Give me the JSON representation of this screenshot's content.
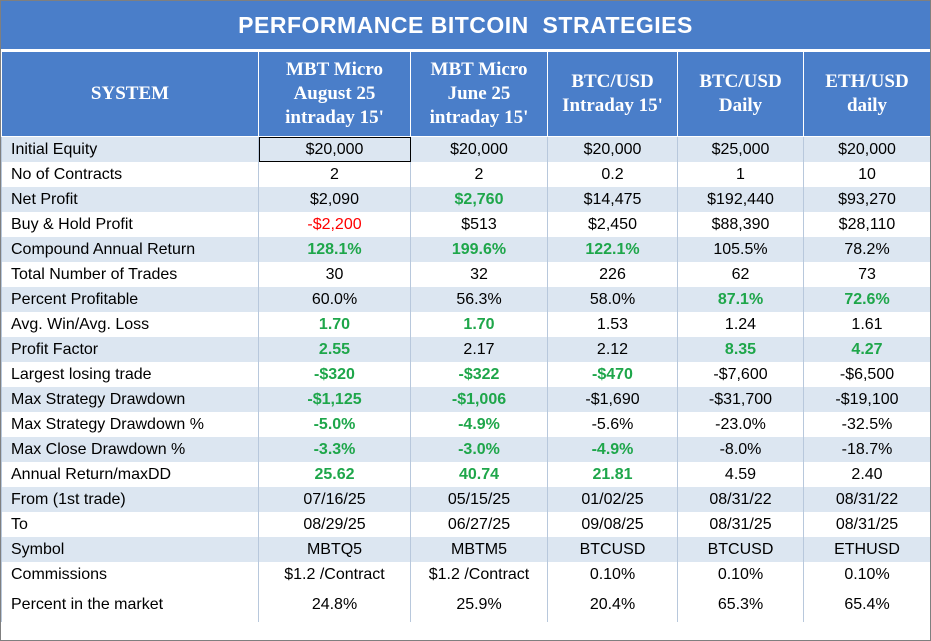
{
  "header": {
    "title": "PERFORMANCE BITCOIN  STRATEGIES",
    "columns": [
      [
        "SYSTEM"
      ],
      [
        "MBT Micro",
        "August 25",
        "intraday 15'"
      ],
      [
        "MBT Micro",
        "June 25",
        "intraday 15'"
      ],
      [
        "BTC/USD",
        "Intraday 15'"
      ],
      [
        "BTC/USD",
        "Daily"
      ],
      [
        "ETH/USD",
        "daily"
      ]
    ]
  },
  "table": {
    "rows": [
      {
        "label": "Initial Equity",
        "values": [
          "$20,000",
          "$20,000",
          "$20,000",
          "$25,000",
          "$20,000"
        ],
        "colors": [
          "#000000",
          "#000000",
          "#000000",
          "#000000",
          "#000000"
        ]
      },
      {
        "label": "No of Contracts",
        "values": [
          "2",
          "2",
          "0.2",
          "1",
          "10"
        ],
        "colors": [
          "#000000",
          "#000000",
          "#000000",
          "#000000",
          "#000000"
        ]
      },
      {
        "label": "Net Profit",
        "values": [
          "$2,090",
          "$2,760",
          "$14,475",
          "$192,440",
          "$93,270"
        ],
        "colors": [
          "#000000",
          "#1ea64a",
          "#000000",
          "#000000",
          "#000000"
        ]
      },
      {
        "label": "Buy & Hold Profit",
        "values": [
          "-$2,200",
          "$513",
          "$2,450",
          "$88,390",
          "$28,110"
        ],
        "colors": [
          "#ff0000",
          "#000000",
          "#000000",
          "#000000",
          "#000000"
        ]
      },
      {
        "label": "Compound Annual Return",
        "values": [
          "128.1%",
          "199.6%",
          "122.1%",
          "105.5%",
          "78.2%"
        ],
        "colors": [
          "#1ea64a",
          "#1ea64a",
          "#1ea64a",
          "#000000",
          "#000000"
        ]
      },
      {
        "label": "Total Number of Trades",
        "values": [
          "30",
          "32",
          "226",
          "62",
          "73"
        ],
        "colors": [
          "#000000",
          "#000000",
          "#000000",
          "#000000",
          "#000000"
        ]
      },
      {
        "label": "Percent Profitable",
        "values": [
          "60.0%",
          "56.3%",
          "58.0%",
          "87.1%",
          "72.6%"
        ],
        "colors": [
          "#000000",
          "#000000",
          "#000000",
          "#1ea64a",
          "#1ea64a"
        ]
      },
      {
        "label": "Avg. Win/Avg. Loss",
        "values": [
          "1.70",
          "1.70",
          "1.53",
          "1.24",
          "1.61"
        ],
        "colors": [
          "#1ea64a",
          "#1ea64a",
          "#000000",
          "#000000",
          "#000000"
        ]
      },
      {
        "label": "Profit Factor",
        "values": [
          "2.55",
          "2.17",
          "2.12",
          "8.35",
          "4.27"
        ],
        "colors": [
          "#1ea64a",
          "#000000",
          "#000000",
          "#1ea64a",
          "#1ea64a"
        ]
      },
      {
        "label": "Largest losing trade",
        "values": [
          "-$320",
          "-$322",
          "-$470",
          "-$7,600",
          "-$6,500"
        ],
        "colors": [
          "#1ea64a",
          "#1ea64a",
          "#1ea64a",
          "#000000",
          "#000000"
        ]
      },
      {
        "label": "Max Strategy Drawdown",
        "values": [
          "-$1,125",
          "-$1,006",
          "-$1,690",
          "-$31,700",
          "-$19,100"
        ],
        "colors": [
          "#1ea64a",
          "#1ea64a",
          "#000000",
          "#000000",
          "#000000"
        ]
      },
      {
        "label": "Max Strategy Drawdown %",
        "values": [
          "-5.0%",
          "-4.9%",
          "-5.6%",
          "-23.0%",
          "-32.5%"
        ],
        "colors": [
          "#1ea64a",
          "#1ea64a",
          "#000000",
          "#000000",
          "#000000"
        ]
      },
      {
        "label": "Max Close Drawdown %",
        "values": [
          "-3.3%",
          "-3.0%",
          "-4.9%",
          "-8.0%",
          "-18.7%"
        ],
        "colors": [
          "#1ea64a",
          "#1ea64a",
          "#1ea64a",
          "#000000",
          "#000000"
        ]
      },
      {
        "label": "Annual Return/maxDD",
        "values": [
          "25.62",
          "40.74",
          "21.81",
          "4.59",
          "2.40"
        ],
        "colors": [
          "#1ea64a",
          "#1ea64a",
          "#1ea64a",
          "#000000",
          "#000000"
        ]
      },
      {
        "label": "From (1st trade)",
        "values": [
          "07/16/25",
          "05/15/25",
          "01/02/25",
          "08/31/22",
          "08/31/22"
        ],
        "colors": [
          "#000000",
          "#000000",
          "#000000",
          "#000000",
          "#000000"
        ]
      },
      {
        "label": "To",
        "values": [
          "08/29/25",
          "06/27/25",
          "09/08/25",
          "08/31/25",
          "08/31/25"
        ],
        "colors": [
          "#000000",
          "#000000",
          "#000000",
          "#000000",
          "#000000"
        ]
      },
      {
        "label": "Symbol",
        "values": [
          "MBTQ5",
          "MBTM5",
          "BTCUSD",
          "BTCUSD",
          "ETHUSD"
        ],
        "colors": [
          "#000000",
          "#000000",
          "#000000",
          "#000000",
          "#000000"
        ]
      },
      {
        "label": "Commissions",
        "values": [
          "$1.2 /Contract",
          "$1.2 /Contract",
          "0.10%",
          "0.10%",
          "0.10%"
        ],
        "colors": [
          "#000000",
          "#000000",
          "#000000",
          "#000000",
          "#000000"
        ]
      },
      {
        "label": "Percent in the market",
        "values": [
          "24.8%",
          "25.9%",
          "20.4%",
          "65.3%",
          "65.4%"
        ],
        "colors": [
          "#000000",
          "#000000",
          "#000000",
          "#000000",
          "#000000"
        ]
      }
    ]
  }
}
